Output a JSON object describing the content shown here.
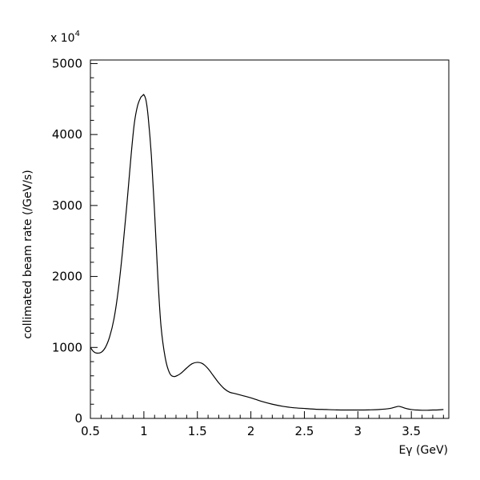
{
  "chart_data": {
    "type": "line",
    "title": "",
    "xlabel": "Eγ (GeV)",
    "ylabel": "collimated beam rate (/GeV/s)",
    "y_multiplier": "x 10",
    "y_multiplier_exp": "4",
    "xlim": [
      0.5,
      3.85
    ],
    "ylim": [
      0,
      5050
    ],
    "x_ticks": [
      {
        "value": 0.5,
        "label": "0.5"
      },
      {
        "value": 1,
        "label": "1"
      },
      {
        "value": 1.5,
        "label": "1.5"
      },
      {
        "value": 2,
        "label": "2"
      },
      {
        "value": 2.5,
        "label": "2.5"
      },
      {
        "value": 3,
        "label": "3"
      },
      {
        "value": 3.5,
        "label": "3.5"
      }
    ],
    "y_ticks": [
      {
        "value": 0,
        "label": "0"
      },
      {
        "value": 1000,
        "label": "1000"
      },
      {
        "value": 2000,
        "label": "2000"
      },
      {
        "value": 3000,
        "label": "3000"
      },
      {
        "value": 4000,
        "label": "4000"
      },
      {
        "value": 5000,
        "label": "5000"
      }
    ],
    "grid": false,
    "series": [
      {
        "x": [
          0.5,
          0.53,
          0.56,
          0.6,
          0.64,
          0.68,
          0.72,
          0.76,
          0.8,
          0.84,
          0.88,
          0.91,
          0.94,
          0.97,
          0.99,
          1.0,
          1.02,
          1.04,
          1.07,
          1.1,
          1.13,
          1.16,
          1.2,
          1.24,
          1.28,
          1.32,
          1.35,
          1.4,
          1.45,
          1.5,
          1.55,
          1.6,
          1.65,
          1.7,
          1.75,
          1.8,
          1.85,
          1.9,
          2.0,
          2.1,
          2.2,
          2.3,
          2.4,
          2.5,
          2.6,
          2.7,
          2.8,
          2.9,
          3.0,
          3.1,
          3.2,
          3.3,
          3.35,
          3.38,
          3.41,
          3.45,
          3.5,
          3.55,
          3.6,
          3.65,
          3.7,
          3.75,
          3.8
        ],
        "y": [
          1000,
          940,
          920,
          930,
          1000,
          1150,
          1400,
          1800,
          2350,
          3000,
          3700,
          4150,
          4400,
          4520,
          4550,
          4560,
          4480,
          4250,
          3700,
          2900,
          2000,
          1300,
          850,
          640,
          590,
          610,
          640,
          710,
          770,
          790,
          770,
          700,
          600,
          500,
          420,
          370,
          350,
          330,
          290,
          240,
          200,
          170,
          150,
          140,
          130,
          125,
          120,
          118,
          118,
          120,
          125,
          140,
          160,
          170,
          160,
          140,
          125,
          118,
          115,
          115,
          118,
          120,
          125
        ]
      }
    ]
  }
}
